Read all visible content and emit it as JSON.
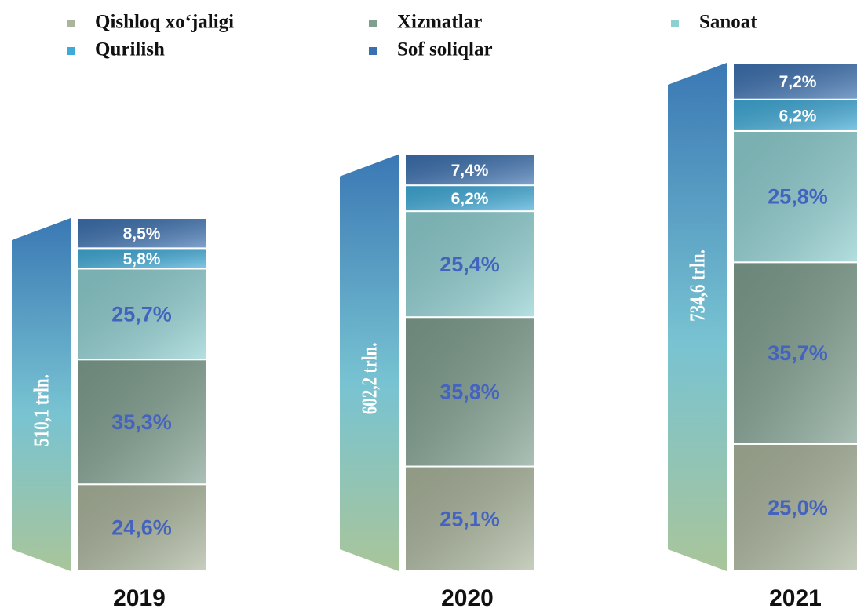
{
  "chart_data": {
    "type": "stacked-bar",
    "categories": [
      "2019",
      "2020",
      "2021"
    ],
    "series": [
      {
        "name": "Qishloq xo‘jaligi",
        "color": "#aab59c",
        "values": [
          24.6,
          25.1,
          25.0
        ],
        "value_labels": [
          "24,6%",
          "25,1%",
          "25,0%"
        ]
      },
      {
        "name": "Xizmatlar",
        "color": "#7f9f8f",
        "values": [
          35.3,
          35.8,
          35.7
        ],
        "value_labels": [
          "35,3%",
          "35,8%",
          "35,7%"
        ]
      },
      {
        "name": "Sanoat",
        "color": "#8ecfd1",
        "values": [
          25.7,
          25.4,
          25.8
        ],
        "value_labels": [
          "25,7%",
          "25,4%",
          "25,8%"
        ]
      },
      {
        "name": "Qurilish",
        "color": "#3eaad8",
        "values": [
          5.8,
          6.2,
          6.2
        ],
        "value_labels": [
          "5,8%",
          "6,2%",
          "6,2%"
        ]
      },
      {
        "name": "Sof soliqlar",
        "color": "#3b70b0",
        "values": [
          8.5,
          7.4,
          7.2
        ],
        "value_labels": [
          "8,5%",
          "7,4%",
          "7,2%"
        ]
      }
    ],
    "totals": [
      {
        "value": 510.1,
        "label": "510,1 trln."
      },
      {
        "value": 602.2,
        "label": "602,2 trln."
      },
      {
        "value": 734.6,
        "label": "734,6 trln."
      }
    ]
  }
}
